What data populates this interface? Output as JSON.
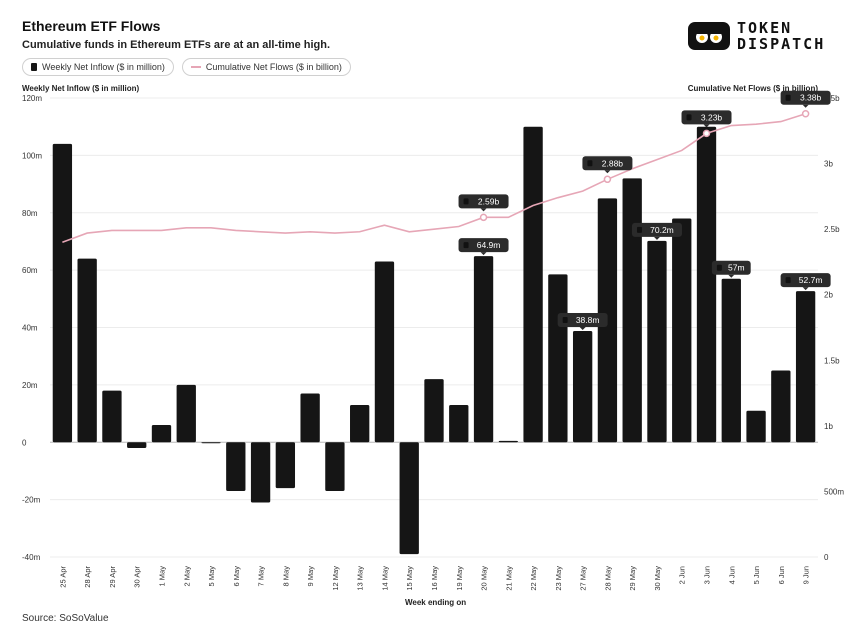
{
  "header": {
    "title": "Ethereum ETF Flows",
    "subtitle": "Cumulative funds in Ethereum ETFs are at an all-time high."
  },
  "logo": {
    "line1": "TOKEN",
    "line2": "DISPATCH"
  },
  "legend": {
    "bar_label": "Weekly Net Inflow ($ in million)",
    "line_label": "Cumulative Net Flows ($ in billion)"
  },
  "axes": {
    "left_title": "Weekly Net Inflow ($ in million)",
    "right_title": "Cumulative Net Flows ($ in billion)",
    "x_title": "Week ending on"
  },
  "source": "Source: SoSoValue",
  "colors": {
    "bar": "#151515",
    "line": "#e6a6b6",
    "label_bg": "#2b2b2b",
    "grid": "#ececec"
  },
  "chart_data": {
    "type": "bar",
    "categories": [
      "25 Apr",
      "28 Apr",
      "29 Apr",
      "30 Apr",
      "1 May",
      "2 May",
      "5 May",
      "6 May",
      "7 May",
      "8 May",
      "9 May",
      "12 May",
      "13 May",
      "14 May",
      "15 May",
      "16 May",
      "19 May",
      "20 May",
      "21 May",
      "22 May",
      "23 May",
      "27 May",
      "28 May",
      "29 May",
      "30 May",
      "2 Jun",
      "3 Jun",
      "4 Jun",
      "5 Jun",
      "6 Jun",
      "9 Jun"
    ],
    "series": [
      {
        "name": "Weekly Net Inflow ($ in million)",
        "type": "bar",
        "axis": "left",
        "values": [
          104,
          64,
          18,
          -2,
          6,
          20,
          0,
          -17,
          -21,
          -16,
          17,
          -17,
          13,
          63,
          -39,
          22,
          13,
          64.9,
          0.5,
          110,
          58.5,
          38.8,
          85,
          92,
          70.2,
          78,
          110,
          57,
          11,
          25,
          52.7
        ]
      },
      {
        "name": "Cumulative Net Flows ($ in billion)",
        "type": "line",
        "axis": "right",
        "values": [
          2.4,
          2.47,
          2.49,
          2.49,
          2.49,
          2.51,
          2.51,
          2.49,
          2.48,
          2.47,
          2.48,
          2.47,
          2.48,
          2.53,
          2.48,
          2.5,
          2.52,
          2.59,
          2.59,
          2.68,
          2.74,
          2.79,
          2.88,
          2.96,
          3.03,
          3.1,
          3.23,
          3.29,
          3.3,
          3.32,
          3.38
        ]
      }
    ],
    "bar_labels": [
      {
        "index": 17,
        "text": "64.9m"
      },
      {
        "index": 21,
        "text": "38.8m"
      },
      {
        "index": 24,
        "text": "70.2m"
      },
      {
        "index": 27,
        "text": "57m"
      },
      {
        "index": 30,
        "text": "52.7m"
      }
    ],
    "line_labels": [
      {
        "index": 17,
        "text": "2.59b"
      },
      {
        "index": 22,
        "text": "2.88b"
      },
      {
        "index": 26,
        "text": "3.23b"
      },
      {
        "index": 30,
        "text": "3.38b"
      }
    ],
    "ylim_left": [
      -40,
      120
    ],
    "yticks_left": [
      "-40m",
      "-20m",
      "0",
      "20m",
      "40m",
      "60m",
      "80m",
      "100m",
      "120m"
    ],
    "yticks_left_values": [
      -40,
      -20,
      0,
      20,
      40,
      60,
      80,
      100,
      120
    ],
    "ylim_right": [
      0,
      3.5
    ],
    "yticks_right": [
      "0",
      "500m",
      "1b",
      "1.5b",
      "2b",
      "2.5b",
      "3b",
      "3.5b"
    ],
    "yticks_right_values": [
      0,
      0.5,
      1,
      1.5,
      2,
      2.5,
      3,
      3.5
    ],
    "grid": true,
    "legend_position": "top-left"
  }
}
